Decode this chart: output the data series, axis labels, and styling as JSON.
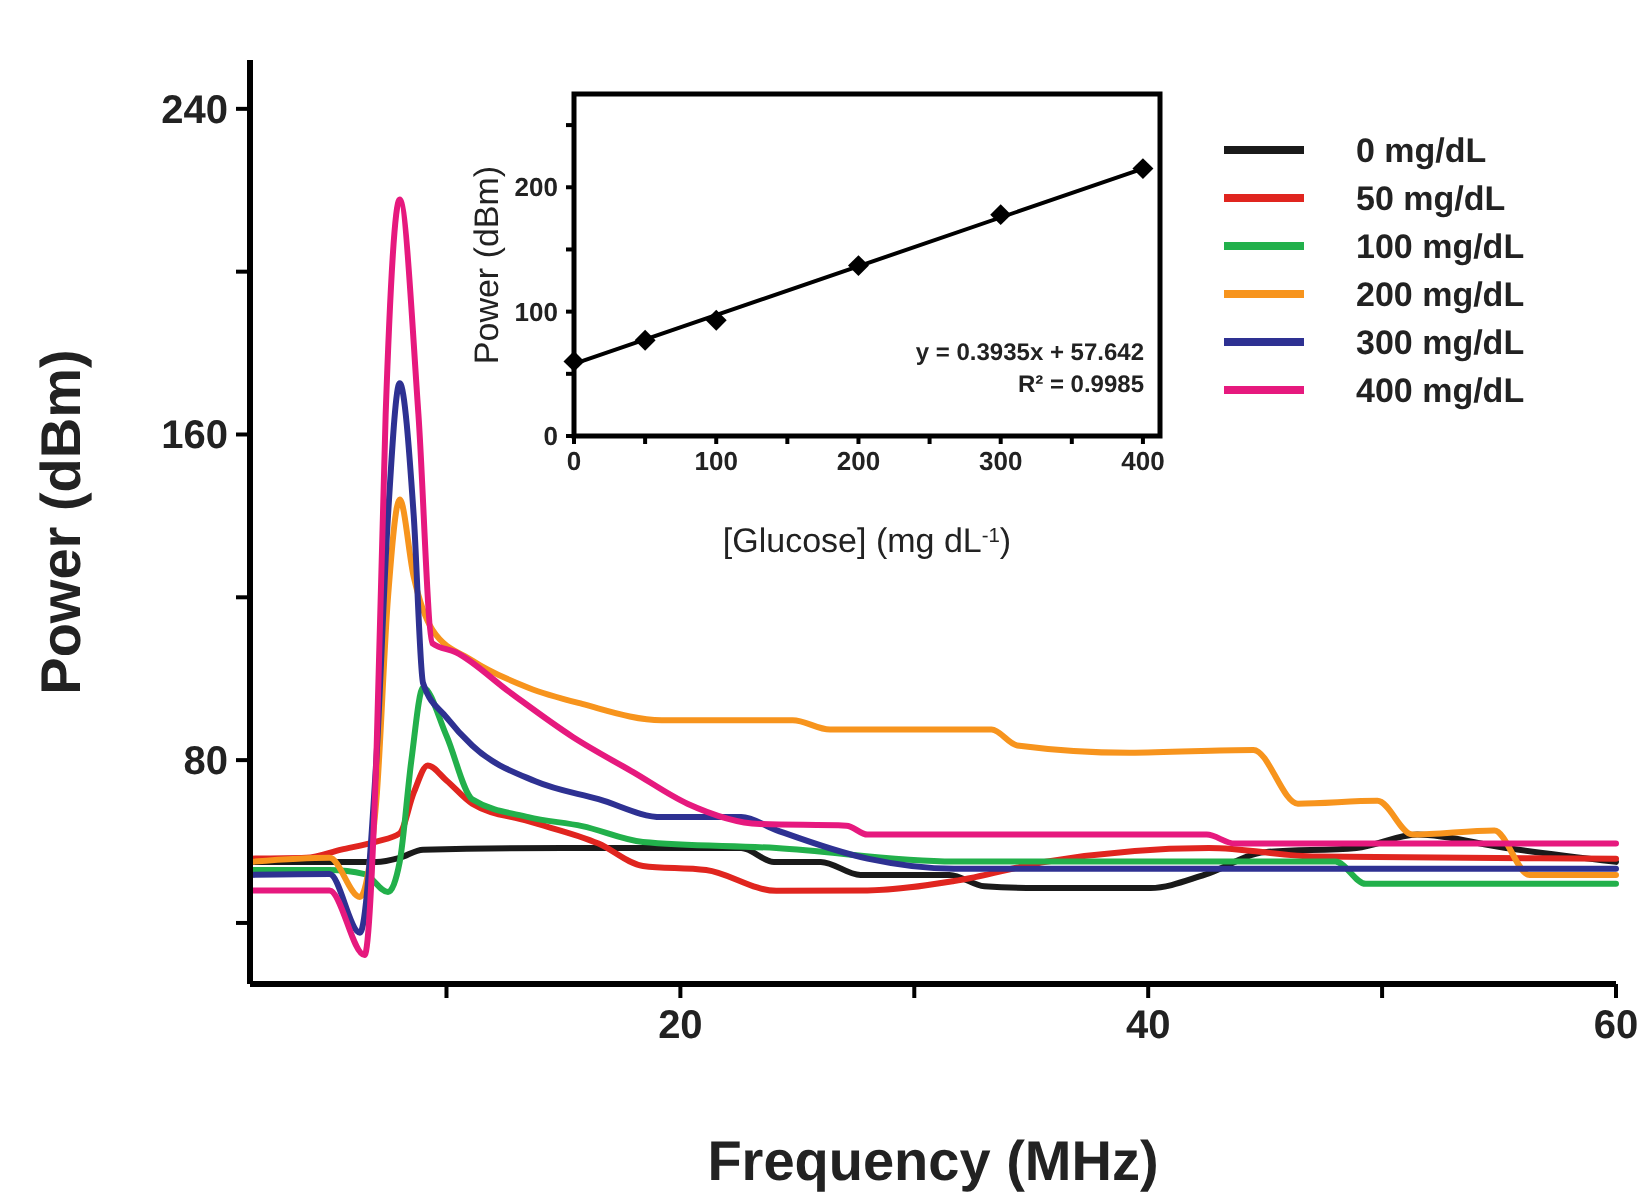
{
  "chart_data": [
    {
      "type": "line",
      "xlabel": "Frequency (MHz)",
      "ylabel": "Power (dBm)",
      "xlim": [
        1.6,
        60
      ],
      "ylim": [
        25,
        252
      ],
      "xticks": [
        {
          "value": 10,
          "label": null
        },
        20,
        {
          "value": 30,
          "label": null
        },
        40,
        {
          "value": 50,
          "label": null
        },
        60
      ],
      "yticks": [
        {
          "value": 40,
          "label": null
        },
        80,
        {
          "value": 120,
          "label": null
        },
        160,
        {
          "value": 200,
          "label": null
        },
        240
      ],
      "legend": "top right",
      "grid": false,
      "line_style": "solid",
      "series": [
        {
          "name": "0 mg/dL",
          "color": "#1a1a1a",
          "x": [
            1.6,
            5,
            7,
            8,
            9,
            15,
            22.6,
            24,
            26,
            27.7,
            31.5,
            33,
            34.8,
            40.1,
            42.4,
            45,
            48.9,
            51.5,
            55.3,
            60
          ],
          "values": [
            55,
            55,
            55,
            56,
            58,
            58.4,
            58.4,
            55,
            55,
            51.8,
            51.8,
            49,
            48.6,
            48.6,
            51.8,
            57.4,
            58.4,
            61.7,
            58.4,
            55
          ]
        },
        {
          "name": "50 mg/dL",
          "color": "#e0251f",
          "x": [
            1.6,
            4,
            5.5,
            7,
            8,
            8.6,
            9.2,
            10,
            11.1,
            13.5,
            16.5,
            18.4,
            21.1,
            24.1,
            28,
            31.7,
            35.7,
            42.6,
            47.2,
            60
          ],
          "values": [
            55.8,
            56,
            58,
            60,
            62,
            72,
            78.7,
            75,
            69.3,
            65,
            59.5,
            54,
            53,
            47.9,
            48,
            50.3,
            55.1,
            58.4,
            56.3,
            55.8
          ]
        },
        {
          "name": "100 mg/dL",
          "color": "#22b04b",
          "x": [
            1.6,
            5,
            6.5,
            7.5,
            8,
            8.5,
            9,
            10,
            11.1,
            13.5,
            15.8,
            18.4,
            24.1,
            31.7,
            48,
            49.3,
            60
          ],
          "values": [
            53,
            53,
            52,
            47.6,
            55,
            80,
            97.8,
            86,
            70.4,
            66,
            63.8,
            59.9,
            58.4,
            55.1,
            55.1,
            49.6,
            49.6
          ]
        },
        {
          "name": "200 mg/dL",
          "color": "#f7941d",
          "x": [
            1.6,
            5,
            6.3,
            7,
            7.5,
            8,
            8.6,
            9.4,
            11.1,
            13.5,
            15.8,
            19.2,
            24.8,
            26.4,
            33.3,
            34.4,
            39.2,
            44.5,
            46.4,
            49.8,
            51.3,
            54.8,
            56.3,
            60
          ],
          "values": [
            55,
            56,
            46.4,
            70,
            120,
            144,
            125,
            112,
            104.5,
            97.8,
            93.8,
            89.8,
            89.8,
            87.5,
            87.5,
            83.6,
            81.8,
            82.5,
            69.3,
            70,
            61.7,
            62.7,
            51.8,
            51.8
          ]
        },
        {
          "name": "300 mg/dL",
          "color": "#2e3192",
          "x": [
            1.6,
            5,
            6.3,
            7,
            7.5,
            8,
            8.6,
            9,
            10,
            11.1,
            13.8,
            16.5,
            19.2,
            22.6,
            24.1,
            28,
            31.7,
            60
          ],
          "values": [
            51.8,
            52,
            37.6,
            80,
            140,
            172.6,
            140,
            98.9,
            90.5,
            83.6,
            74.8,
            70.4,
            66,
            66,
            62.8,
            55.8,
            53.3,
            53.3
          ]
        },
        {
          "name": "400 mg/dL",
          "color": "#e6197e",
          "x": [
            1.6,
            5,
            6.5,
            7,
            7.4,
            8,
            8.8,
            9.4,
            10.4,
            12.7,
            15.4,
            18,
            20.3,
            23.4,
            27.1,
            28,
            42.5,
            43.7,
            60
          ],
          "values": [
            48,
            48,
            32.1,
            80,
            165,
            217.7,
            165,
            108.7,
            106.5,
            96.7,
            85.7,
            77,
            69.3,
            64.3,
            63.9,
            61.7,
            61.7,
            59.5,
            59.5
          ]
        }
      ]
    },
    {
      "type": "scatter",
      "xlabel": "[Glucose] (mg dL$^{-1}$)",
      "ylabel": "Power (dBm)",
      "xlim": [
        0,
        412
      ],
      "ylim": [
        0,
        275
      ],
      "xticks": [
        0,
        {
          "value": 50,
          "label": null
        },
        100,
        {
          "value": 150,
          "label": null
        },
        200,
        {
          "value": 250,
          "label": null
        },
        300,
        {
          "value": 350,
          "label": null
        },
        400
      ],
      "yticks": [
        0,
        {
          "value": 50,
          "label": null
        },
        100,
        {
          "value": 150,
          "label": null
        },
        200,
        {
          "value": 250,
          "label": null
        }
      ],
      "grid": false,
      "legend": false,
      "annotations": [
        "y = 0.3935x + 57.642",
        "R² = 0.9985"
      ],
      "series": [
        {
          "color": "#000000",
          "marker": "diamond",
          "x": [
            0,
            50,
            100,
            200,
            300,
            400
          ],
          "values": [
            60,
            77,
            93,
            137,
            178,
            215
          ]
        },
        {
          "type": "line",
          "color": "#000000",
          "x": [
            0,
            400
          ],
          "values": [
            58,
            215
          ]
        }
      ]
    }
  ]
}
